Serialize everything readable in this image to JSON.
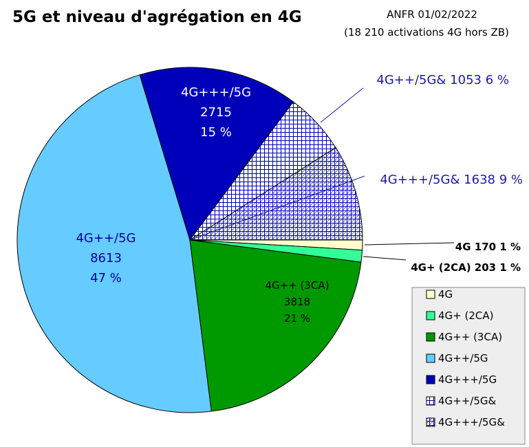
{
  "chart_data": {
    "type": "pie",
    "title": "5G et niveau d'agrégation en 4G",
    "source_line1": "ANFR 01/02/2022",
    "source_line2": "(18 210 activations 4G hors ZB)",
    "legend_placement": "bottom-right",
    "slices": [
      {
        "name": "4G",
        "value": 170,
        "percent": "1 %",
        "color": "#ffffcc",
        "pattern": "none",
        "label": [
          "4G 170 1 %"
        ]
      },
      {
        "name": "4G+ (2CA)",
        "value": 203,
        "percent": "1 %",
        "color": "#33ff99",
        "pattern": "none",
        "label": [
          "4G+ (2CA) 203 1 %"
        ]
      },
      {
        "name": "4G++ (3CA)",
        "value": 3818,
        "percent": "21 %",
        "color": "#009900",
        "pattern": "none",
        "label": [
          "4G++ (3CA)",
          "3818",
          "21 %"
        ]
      },
      {
        "name": "4G++/5G",
        "value": 8613,
        "percent": "47 %",
        "color": "#66ccff",
        "pattern": "none",
        "label": [
          "4G++/5G",
          "8613",
          "47 %"
        ]
      },
      {
        "name": "4G+++/5G",
        "value": 2715,
        "percent": "15 %",
        "color": "#0000bb",
        "pattern": "none",
        "label": [
          "4G+++/5G",
          "2715",
          "15 %"
        ]
      },
      {
        "name": "4G++/5G&",
        "value": 1053,
        "percent": "6 %",
        "color": "#0000bb",
        "pattern": "grid",
        "label": [
          "4G++/5G& 1053 6 %"
        ]
      },
      {
        "name": "4G+++/5G&",
        "value": 1638,
        "percent": "9 %",
        "color": "#0000bb",
        "pattern": "grid-diagonal",
        "label": [
          "4G+++/5G& 1638 9 %"
        ]
      }
    ],
    "label_colors": {
      "inside_light": "#000099",
      "inside_dark": "#ffffff",
      "inside_green": "#000000",
      "outside_blue": "#1a1aaa",
      "outside_black": "#000000"
    }
  }
}
